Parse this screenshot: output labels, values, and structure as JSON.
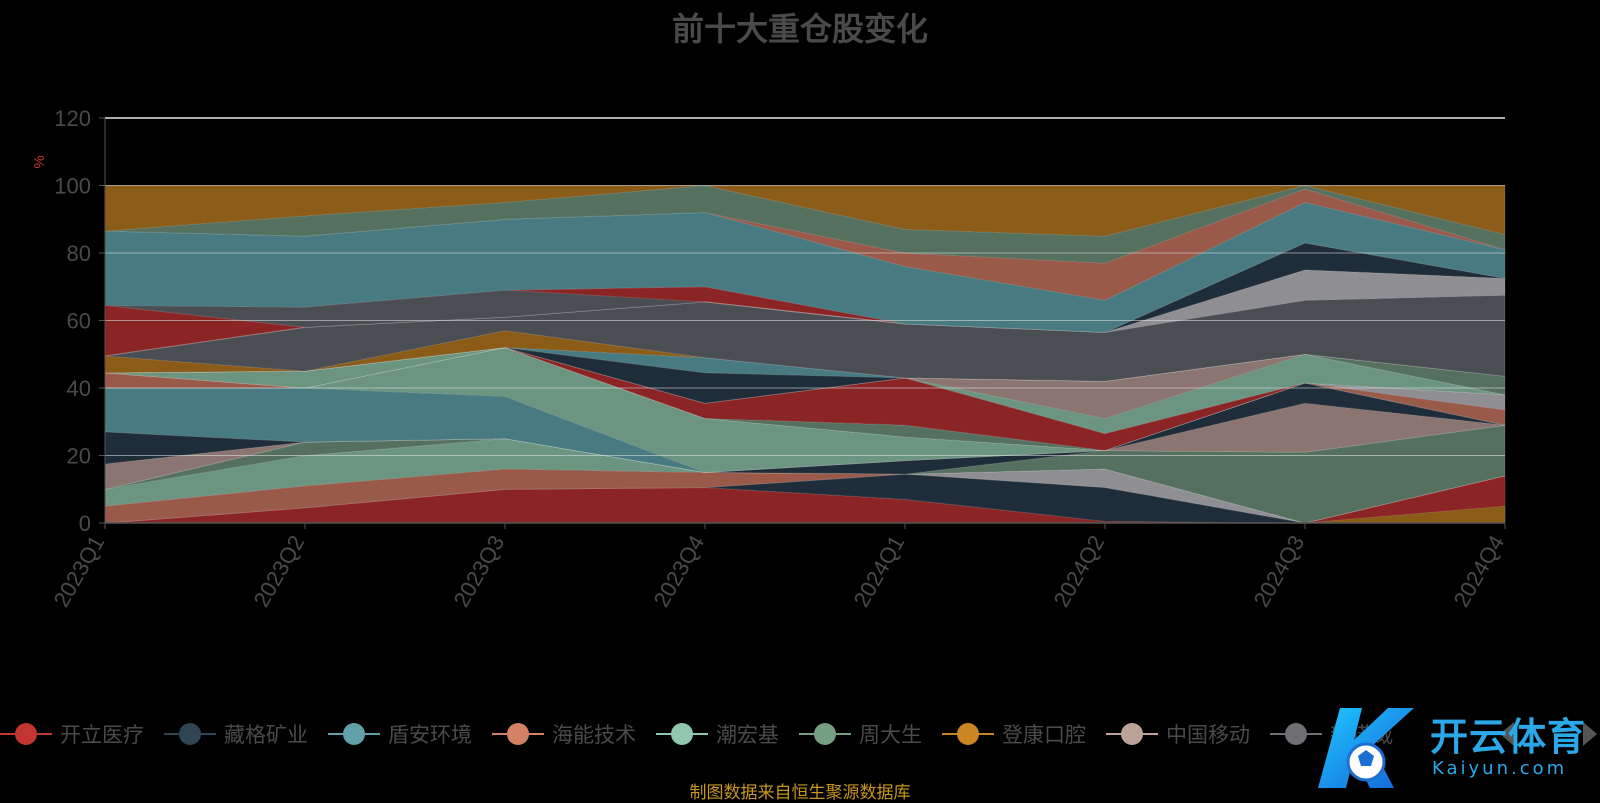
{
  "chart_data": {
    "type": "area",
    "title": "前十大重仓股变化",
    "ylabel": "%",
    "ylim": [
      0,
      120
    ],
    "yticks": [
      0,
      20,
      40,
      60,
      80,
      100,
      120
    ],
    "categories": [
      "2023Q1",
      "2023Q2",
      "2023Q3",
      "2023Q4",
      "2024Q1",
      "2024Q2",
      "2024Q3",
      "2024Q4"
    ],
    "stacked": true,
    "grid": true,
    "legend_position": "bottom",
    "source": "制图数据来自恒生聚源数据库",
    "series": [
      {
        "name": "开立医疗",
        "color": "#8b2424",
        "values": [
          0,
          4.5,
          10,
          10.5,
          7,
          0.5,
          0,
          14
        ]
      },
      {
        "name": "藏格矿业",
        "color": "#1f2d3a",
        "values": [
          0,
          0,
          0,
          0,
          7.5,
          10,
          0,
          0
        ]
      },
      {
        "name": "盾安环境",
        "color": "#487a82",
        "values": [
          0,
          0,
          0,
          4.5,
          0,
          0,
          0,
          0
        ]
      },
      {
        "name": "海能技术",
        "color": "#9a5a4a",
        "values": [
          5,
          6.5,
          6,
          0,
          0,
          0,
          0,
          0
        ]
      },
      {
        "name": "潮宏基",
        "color": "#6b9580",
        "values": [
          5,
          9,
          9,
          0,
          0,
          0,
          0,
          0
        ]
      },
      {
        "name": "周大生",
        "color": "#55705e",
        "values": [
          0,
          4,
          0,
          0,
          0,
          0,
          21,
          15
        ]
      },
      {
        "name": "登康口腔",
        "color": "#8a5c18",
        "values": [
          0,
          0,
          0,
          0,
          0,
          0,
          0,
          0
        ]
      },
      {
        "name": "中国移动",
        "color": "#8a7570",
        "values": [
          7.5,
          0,
          0,
          0,
          0,
          0,
          14.5,
          0
        ]
      },
      {
        "name": "新诺威",
        "color": "#4a4d52",
        "values": [
          10,
          0,
          0,
          0,
          0,
          0,
          0,
          0
        ]
      }
    ],
    "band_layers": [
      {
        "color": "#8b2424",
        "lower": [
          0,
          0,
          0,
          0,
          0,
          0,
          0,
          0
        ],
        "upper": [
          0,
          4.5,
          10,
          10.5,
          7,
          0.5,
          0,
          14
        ]
      },
      {
        "color": "#1f2d3a",
        "lower": [
          0,
          4.5,
          10,
          10.5,
          7,
          0.5,
          0,
          14
        ],
        "upper": [
          0,
          4.5,
          10,
          10.5,
          14.5,
          10.5,
          0,
          14
        ]
      },
      {
        "color": "#8f8f93",
        "lower": [
          0,
          4.5,
          10,
          10.5,
          14.5,
          10.5,
          0,
          14
        ],
        "upper": [
          0,
          4.5,
          10,
          10.5,
          14.5,
          16,
          0,
          14
        ]
      },
      {
        "color": "#8a5c18",
        "lower": [
          0,
          0,
          0,
          0,
          0,
          0,
          0,
          0
        ],
        "upper": [
          0,
          0,
          0,
          0,
          0,
          0,
          0,
          5
        ]
      },
      {
        "color": "#9a5a4a",
        "lower": [
          0,
          4.5,
          10,
          10.5,
          14.5,
          16,
          0,
          14
        ],
        "upper": [
          5,
          11,
          16,
          15,
          14.5,
          16,
          0,
          14
        ]
      },
      {
        "color": "#6b9580",
        "lower": [
          5,
          11,
          16,
          15,
          14.5,
          16,
          0,
          14
        ],
        "upper": [
          10,
          20,
          25,
          15,
          14.5,
          16,
          0,
          14
        ]
      },
      {
        "color": "#55705e",
        "lower": [
          10,
          20,
          25,
          15,
          14.5,
          16,
          0,
          14
        ],
        "upper": [
          10,
          24,
          25,
          15,
          14.5,
          21.5,
          21,
          29
        ]
      },
      {
        "color": "#1f2d3a",
        "lower": [
          10,
          24,
          25,
          15,
          14.5,
          21.5,
          21,
          29
        ],
        "upper": [
          10,
          24,
          25,
          15,
          18.5,
          21.5,
          21,
          29
        ]
      },
      {
        "color": "#487a82",
        "lower": [
          10,
          24,
          25,
          15,
          18.5,
          21.5,
          21,
          29
        ],
        "upper": [
          10,
          24,
          25,
          15,
          18.5,
          21.5,
          21,
          29
        ]
      },
      {
        "color": "#8a7570",
        "lower": [
          10,
          24,
          25,
          15,
          18.5,
          21.5,
          21,
          29
        ],
        "upper": [
          17.5,
          24,
          25,
          15,
          18.5,
          21.5,
          35.5,
          29
        ]
      },
      {
        "color": "#1f2d3a",
        "lower": [
          17.5,
          24,
          25,
          15,
          18.5,
          21.5,
          35.5,
          29
        ],
        "upper": [
          27,
          24,
          25,
          15,
          18.5,
          21.5,
          41.5,
          29
        ]
      },
      {
        "color": "#487a82",
        "lower": [
          27,
          24,
          25,
          15,
          18.5,
          21.5,
          41.5,
          29
        ],
        "upper": [
          40,
          40,
          37.5,
          15,
          18.5,
          21.5,
          41.5,
          29
        ]
      },
      {
        "color": "#6b9580",
        "lower": [
          40,
          40,
          37.5,
          15,
          18.5,
          21.5,
          41.5,
          29
        ],
        "upper": [
          40,
          40,
          52,
          31,
          25.5,
          21.5,
          41.5,
          29
        ]
      },
      {
        "color": "#9a5a4a",
        "lower": [
          40,
          40,
          52,
          31,
          25.5,
          21.5,
          41.5,
          29
        ],
        "upper": [
          44.5,
          40,
          52,
          31,
          25.5,
          21.5,
          41.5,
          33.5
        ]
      },
      {
        "color": "#8f8f93",
        "lower": [
          44.5,
          40,
          52,
          31,
          25.5,
          21.5,
          41.5,
          33.5
        ],
        "upper": [
          44.5,
          40,
          52,
          31,
          25.5,
          21.5,
          41.5,
          38
        ]
      },
      {
        "color": "#55705e",
        "lower": [
          44.5,
          40,
          52,
          31,
          25.5,
          21.5,
          41.5,
          38
        ],
        "upper": [
          44.5,
          40,
          52,
          31,
          29,
          21.5,
          41.5,
          38
        ]
      },
      {
        "color": "#8b2424",
        "lower": [
          44.5,
          40,
          52,
          31,
          29,
          21.5,
          41.5,
          38
        ],
        "upper": [
          44.5,
          40,
          52,
          35.5,
          43,
          26.5,
          41.5,
          38
        ]
      },
      {
        "color": "#6b9580",
        "lower": [
          44.5,
          40,
          52,
          35.5,
          43,
          26.5,
          41.5,
          38
        ],
        "upper": [
          44.5,
          45,
          52,
          35.5,
          43,
          31,
          50,
          38
        ]
      },
      {
        "color": "#8a7570",
        "lower": [
          44.5,
          45,
          52,
          35.5,
          43,
          31,
          50,
          38
        ],
        "upper": [
          44.5,
          45,
          52,
          35.5,
          43,
          42,
          50,
          38
        ]
      },
      {
        "color": "#55705e",
        "lower": [
          44.5,
          45,
          52,
          35.5,
          43,
          42,
          50,
          38
        ],
        "upper": [
          44.5,
          45,
          52,
          35.5,
          43,
          42,
          50,
          43.5
        ]
      },
      {
        "color": "#1f2d3a",
        "lower": [
          44.5,
          45,
          52,
          35.5,
          43,
          42,
          50,
          43.5
        ],
        "upper": [
          44.5,
          45,
          52,
          44.5,
          43,
          42,
          50,
          43.5
        ]
      },
      {
        "color": "#487a82",
        "lower": [
          44.5,
          45,
          52,
          44.5,
          43,
          42,
          50,
          43.5
        ],
        "upper": [
          44.5,
          45,
          52,
          49,
          43,
          42,
          50,
          43.5
        ]
      },
      {
        "color": "#8a5c18",
        "lower": [
          44.5,
          45,
          52,
          49,
          43,
          42,
          50,
          43.5
        ],
        "upper": [
          49.5,
          45,
          57,
          49,
          43,
          42,
          50,
          43.5
        ]
      },
      {
        "color": "#4a4d52",
        "lower": [
          49.5,
          45,
          57,
          49,
          43,
          42,
          50,
          43.5
        ],
        "upper": [
          49.5,
          58,
          61,
          65.5,
          59,
          56.5,
          66,
          67.5
        ]
      },
      {
        "color": "#8b2424",
        "lower": [
          49.5,
          58,
          61,
          65.5,
          59,
          56.5,
          66,
          67.5
        ],
        "upper": [
          64.5,
          58,
          69,
          70,
          59,
          56.5,
          66,
          67.5
        ]
      },
      {
        "color": "#8f8f93",
        "lower": [
          49.5,
          58,
          61,
          65.5,
          59,
          56.5,
          66,
          67.5
        ],
        "upper": [
          49.5,
          58,
          61,
          65.5,
          59,
          56.5,
          75,
          72.5
        ]
      },
      {
        "color": "#1f2d3a",
        "lower": [
          49.5,
          58,
          61,
          65.5,
          59,
          56.5,
          75,
          72.5
        ],
        "upper": [
          49.5,
          58,
          61,
          65.5,
          59,
          56.5,
          83,
          72.5
        ]
      },
      {
        "color": "#4a4d52",
        "lower": [
          64.5,
          58,
          61,
          65.5,
          59,
          56.5,
          83,
          72.5
        ],
        "upper": [
          64.5,
          64,
          69,
          65.5,
          59,
          56.5,
          83,
          72.5
        ]
      },
      {
        "color": "#487a82",
        "lower": [
          64.5,
          64,
          69,
          70,
          59,
          56.5,
          83,
          72.5
        ],
        "upper": [
          86.5,
          85,
          90,
          92,
          76,
          66,
          95,
          81
        ]
      },
      {
        "color": "#9a5a4a",
        "lower": [
          86.5,
          85,
          90,
          92,
          76,
          66,
          95,
          81
        ],
        "upper": [
          86.5,
          85,
          90,
          92,
          80,
          77,
          99,
          81
        ]
      },
      {
        "color": "#55705e",
        "lower": [
          86.5,
          85,
          90,
          92,
          80,
          77,
          99,
          81
        ],
        "upper": [
          86.5,
          91,
          95,
          100,
          87,
          85,
          100,
          85.5
        ]
      },
      {
        "color": "#8a5c18",
        "lower": [
          86.5,
          91,
          95,
          100,
          87,
          85,
          100,
          85.5
        ],
        "upper": [
          100,
          100,
          100,
          100,
          100,
          100,
          100,
          100
        ]
      }
    ]
  },
  "legend": {
    "items": [
      {
        "label": "开立医疗",
        "color": "#c23531"
      },
      {
        "label": "藏格矿业",
        "color": "#2f4554"
      },
      {
        "label": "盾安环境",
        "color": "#61a0a8"
      },
      {
        "label": "海能技术",
        "color": "#d48265"
      },
      {
        "label": "潮宏基",
        "color": "#91c7ae"
      },
      {
        "label": "周大生",
        "color": "#749f83"
      },
      {
        "label": "登康口腔",
        "color": "#ca8622"
      },
      {
        "label": "中国移动",
        "color": "#bda29a"
      },
      {
        "label": "新诺威",
        "color": "#6e7074"
      }
    ]
  },
  "watermark": {
    "brand": "开云体育",
    "sub": "Kaiyun.com"
  }
}
